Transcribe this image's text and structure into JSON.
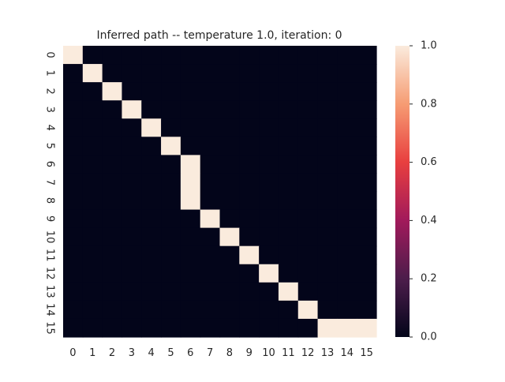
{
  "chart_data": {
    "type": "heatmap",
    "title": "Inferred path -- temperature 1.0, iteration: 0",
    "xlabel": "",
    "ylabel": "",
    "x_tick_labels": [
      "0",
      "1",
      "2",
      "3",
      "4",
      "5",
      "6",
      "7",
      "8",
      "9",
      "10",
      "11",
      "12",
      "13",
      "14",
      "15"
    ],
    "y_tick_labels": [
      "0",
      "1",
      "2",
      "3",
      "4",
      "5",
      "6",
      "7",
      "8",
      "9",
      "10",
      "11",
      "12",
      "13",
      "14",
      "15"
    ],
    "values": [
      [
        1,
        0,
        0,
        0,
        0,
        0,
        0,
        0,
        0,
        0,
        0,
        0,
        0,
        0,
        0,
        0
      ],
      [
        0,
        1,
        0,
        0,
        0,
        0,
        0,
        0,
        0,
        0,
        0,
        0,
        0,
        0,
        0,
        0
      ],
      [
        0,
        0,
        1,
        0,
        0,
        0,
        0,
        0,
        0,
        0,
        0,
        0,
        0,
        0,
        0,
        0
      ],
      [
        0,
        0,
        0,
        1,
        0,
        0,
        0,
        0,
        0,
        0,
        0,
        0,
        0,
        0,
        0,
        0
      ],
      [
        0,
        0,
        0,
        0,
        1,
        0,
        0,
        0,
        0,
        0,
        0,
        0,
        0,
        0,
        0,
        0
      ],
      [
        0,
        0,
        0,
        0,
        0,
        1,
        0,
        0,
        0,
        0,
        0,
        0,
        0,
        0,
        0,
        0
      ],
      [
        0,
        0,
        0,
        0,
        0,
        0,
        1,
        0,
        0,
        0,
        0,
        0,
        0,
        0,
        0,
        0
      ],
      [
        0,
        0,
        0,
        0,
        0,
        0,
        1,
        0,
        0,
        0,
        0,
        0,
        0,
        0,
        0,
        0
      ],
      [
        0,
        0,
        0,
        0,
        0,
        0,
        1,
        0,
        0,
        0,
        0,
        0,
        0,
        0,
        0,
        0
      ],
      [
        0,
        0,
        0,
        0,
        0,
        0,
        0,
        1,
        0,
        0,
        0,
        0,
        0,
        0,
        0,
        0
      ],
      [
        0,
        0,
        0,
        0,
        0,
        0,
        0,
        0,
        1,
        0,
        0,
        0,
        0,
        0,
        0,
        0
      ],
      [
        0,
        0,
        0,
        0,
        0,
        0,
        0,
        0,
        0,
        1,
        0,
        0,
        0,
        0,
        0,
        0
      ],
      [
        0,
        0,
        0,
        0,
        0,
        0,
        0,
        0,
        0,
        0,
        1,
        0,
        0,
        0,
        0,
        0
      ],
      [
        0,
        0,
        0,
        0,
        0,
        0,
        0,
        0,
        0,
        0,
        0,
        1,
        0,
        0,
        0,
        0
      ],
      [
        0,
        0,
        0,
        0,
        0,
        0,
        0,
        0,
        0,
        0,
        0,
        0,
        1,
        0,
        0,
        0
      ],
      [
        0,
        0,
        0,
        0,
        0,
        0,
        0,
        0,
        0,
        0,
        0,
        0,
        0,
        1,
        1,
        1
      ]
    ],
    "colorbar": {
      "min": 0.0,
      "max": 1.0,
      "tick_values": [
        0.0,
        0.2,
        0.4,
        0.6,
        0.8,
        1.0
      ],
      "tick_labels": [
        "0.0",
        "0.2",
        "0.4",
        "0.6",
        "0.8",
        "1.0"
      ]
    },
    "colormap": "rocket",
    "colormap_stops": [
      "#03051a",
      "#4c1d4b",
      "#a11a5b",
      "#e83f3f",
      "#f69c73",
      "#faebdd"
    ],
    "grid": false,
    "legend": "colorbar-right"
  }
}
